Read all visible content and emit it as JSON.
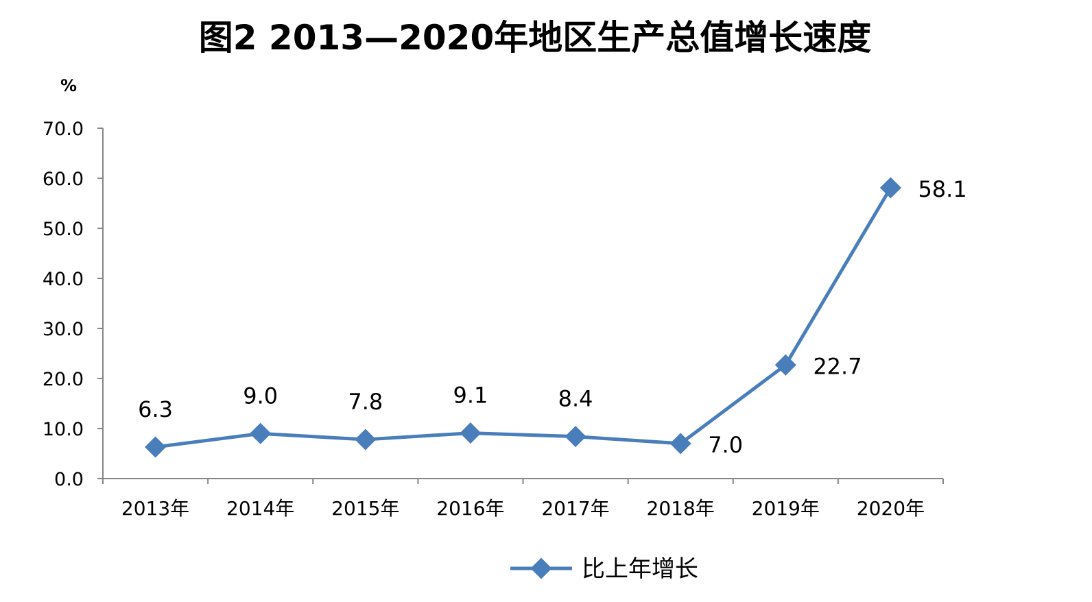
{
  "chart_data": {
    "type": "line",
    "title": "图2  2013—2020年地区生产总值增长速度",
    "ylabel": "%",
    "xlabel": "",
    "ylim": [
      0,
      70
    ],
    "yticks": [
      "0.0",
      "10.0",
      "20.0",
      "30.0",
      "40.0",
      "50.0",
      "60.0",
      "70.0"
    ],
    "categories": [
      "2013年",
      "2014年",
      "2015年",
      "2016年",
      "2017年",
      "2018年",
      "2019年",
      "2020年"
    ],
    "series": [
      {
        "name": "比上年增长",
        "values": [
          6.3,
          9.0,
          7.8,
          9.1,
          8.4,
          7.0,
          22.7,
          58.1
        ],
        "labels": [
          "6.3",
          "9.0",
          "7.8",
          "9.1",
          "8.4",
          "7.0",
          "22.7",
          "58.1"
        ],
        "color": "#4a7ebb"
      }
    ],
    "grid": false,
    "legend": "bottom",
    "axis_color": "#868686"
  }
}
